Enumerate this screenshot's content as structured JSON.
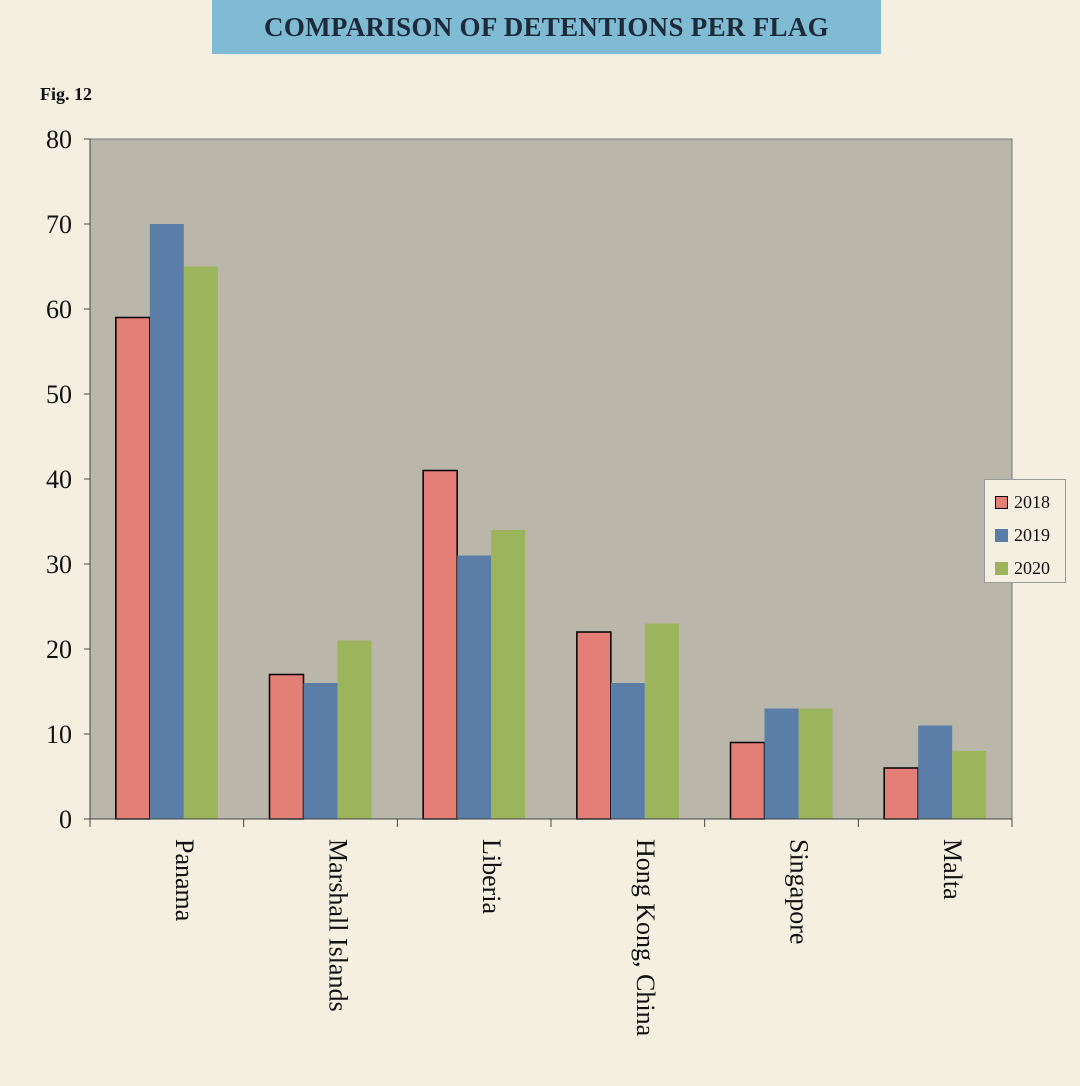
{
  "header": {
    "title": "COMPARISON OF DETENTIONS PER FLAG",
    "fig_label": "Fig.  12"
  },
  "colors": {
    "background": "#f4efe0",
    "plot_area": "#bab6aa",
    "banner": "#7fbcd4",
    "s2018": "#e47f78",
    "s2019": "#5a7ea8",
    "s2020": "#9cb45c"
  },
  "chart_data": {
    "type": "bar",
    "title": "COMPARISON OF DETENTIONS PER FLAG",
    "xlabel": "",
    "ylabel": "",
    "categories": [
      "Panama",
      "Marshall Islands",
      "Liberia",
      "Hong Kong, China",
      "Singapore",
      "Malta"
    ],
    "series": [
      {
        "name": "2018",
        "values": [
          59,
          17,
          41,
          22,
          9,
          6
        ]
      },
      {
        "name": "2019",
        "values": [
          70,
          16,
          31,
          16,
          13,
          11
        ]
      },
      {
        "name": "2020",
        "values": [
          65,
          21,
          34,
          23,
          13,
          8
        ]
      }
    ],
    "ylim": [
      0,
      80
    ],
    "yticks": [
      0,
      10,
      20,
      30,
      40,
      50,
      60,
      70,
      80
    ],
    "grid": false,
    "legend": "right"
  }
}
